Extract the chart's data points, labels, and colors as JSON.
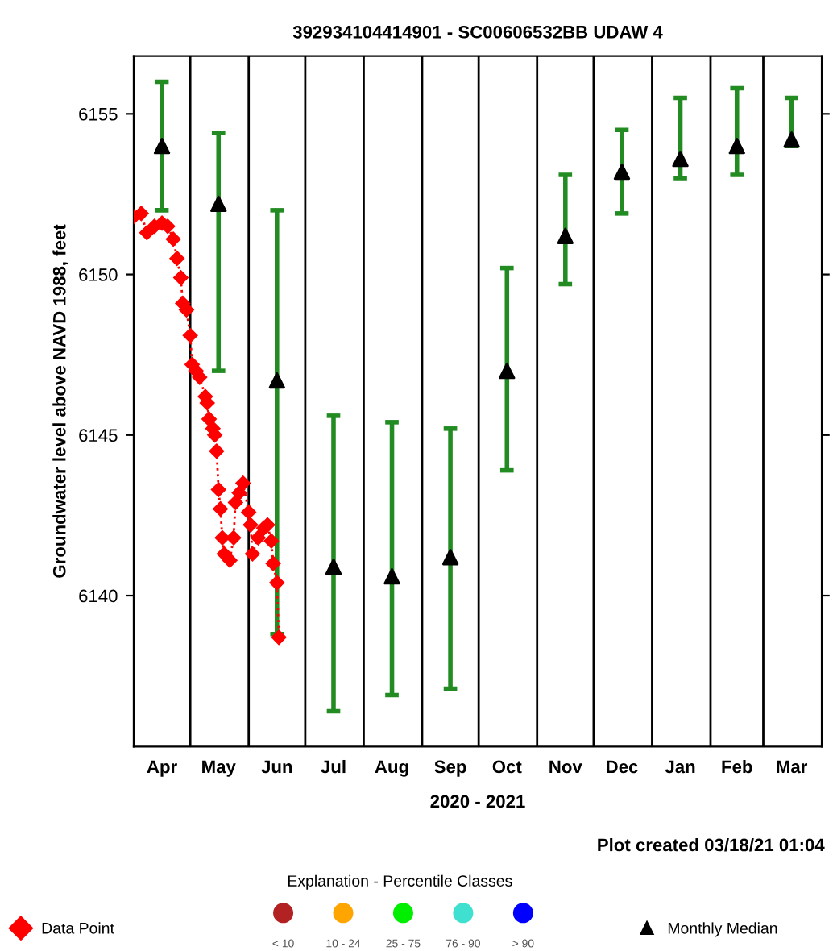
{
  "chart_data": {
    "type": "scatter",
    "title": "392934104414901 - SC00606532BB UDAW 4",
    "xlabel": "2020 - 2021",
    "ylabel": "Groundwater level above NAVD 1988, feet",
    "xlim": [
      "2020-04-01",
      "2021-04-01"
    ],
    "xticks": [
      {
        "value": "2020-04-16",
        "label": "Apr"
      },
      {
        "value": "2020-05-16",
        "label": "May"
      },
      {
        "value": "2020-06-16",
        "label": "Jun"
      },
      {
        "value": "2020-07-16",
        "label": "Jul"
      },
      {
        "value": "2020-08-16",
        "label": "Aug"
      },
      {
        "value": "2020-09-16",
        "label": "Sep"
      },
      {
        "value": "2020-10-16",
        "label": "Oct"
      },
      {
        "value": "2020-11-16",
        "label": "Nov"
      },
      {
        "value": "2020-12-16",
        "label": "Dec"
      },
      {
        "value": "2021-01-16",
        "label": "Jan"
      },
      {
        "value": "2021-02-15",
        "label": "Feb"
      },
      {
        "value": "2021-03-16",
        "label": "Mar"
      }
    ],
    "ylim": [
      6135.3,
      6156.8
    ],
    "yticks": [
      6140,
      6145,
      6150,
      6155
    ],
    "grid": false,
    "legend": "bottom",
    "ref_lines": [
      {
        "axis": "x",
        "value": "2020-05-01",
        "color": "#000000"
      },
      {
        "axis": "x",
        "value": "2020-06-01",
        "color": "#000000"
      },
      {
        "axis": "x",
        "value": "2020-07-01",
        "color": "#000000"
      },
      {
        "axis": "x",
        "value": "2020-08-01",
        "color": "#000000"
      },
      {
        "axis": "x",
        "value": "2020-09-01",
        "color": "#000000"
      },
      {
        "axis": "x",
        "value": "2020-10-01",
        "color": "#000000"
      },
      {
        "axis": "x",
        "value": "2020-11-01",
        "color": "#000000"
      },
      {
        "axis": "x",
        "value": "2020-12-01",
        "color": "#000000"
      },
      {
        "axis": "x",
        "value": "2021-01-01",
        "color": "#000000"
      },
      {
        "axis": "x",
        "value": "2021-02-01",
        "color": "#000000"
      },
      {
        "axis": "x",
        "value": "2021-03-01",
        "color": "#000000"
      }
    ],
    "annotations": [
      "Plot created 03/18/21 01:04",
      "Explanation - Percentile Classes",
      "< 10",
      "10 - 24",
      "25 - 75",
      "76 - 90",
      "> 90"
    ],
    "series": [
      {
        "name": "Data Point",
        "type": "line",
        "color": "#ff0000",
        "marker": "diamond",
        "line_style": "dotted",
        "x": [
          "2020-04-01",
          "2020-04-05",
          "2020-04-08",
          "2020-04-12",
          "2020-04-16",
          "2020-04-19",
          "2020-04-22",
          "2020-04-24",
          "2020-04-26",
          "2020-04-27",
          "2020-04-29",
          "2020-05-01",
          "2020-05-02",
          "2020-05-04",
          "2020-05-06",
          "2020-05-09",
          "2020-05-10",
          "2020-05-11",
          "2020-05-13",
          "2020-05-14",
          "2020-05-15",
          "2020-05-16",
          "2020-05-17",
          "2020-05-18",
          "2020-05-19",
          "2020-05-22",
          "2020-05-24",
          "2020-05-25",
          "2020-05-27",
          "2020-05-29",
          "2020-06-01",
          "2020-06-02",
          "2020-06-03",
          "2020-06-06",
          "2020-06-09",
          "2020-06-11",
          "2020-06-13",
          "2020-06-14",
          "2020-06-16",
          "2020-06-17"
        ],
        "values": [
          6151.8,
          6151.9,
          6151.3,
          6151.5,
          6151.6,
          6151.5,
          6151.1,
          6150.5,
          6149.9,
          6149.1,
          6148.9,
          6148.1,
          6147.2,
          6147.0,
          6146.8,
          6146.2,
          6146.0,
          6145.5,
          6145.2,
          6145.0,
          6144.5,
          6143.3,
          6142.7,
          6141.8,
          6141.3,
          6141.1,
          6141.8,
          6142.9,
          6143.2,
          6143.5,
          6142.6,
          6142.2,
          6141.3,
          6141.8,
          6142.1,
          6142.2,
          6141.7,
          6141.0,
          6140.4,
          6138.7
        ]
      },
      {
        "name": "Monthly Median",
        "color": "#000000",
        "marker": "triangle",
        "x": [
          "2020-04-16",
          "2020-05-16",
          "2020-06-16",
          "2020-07-16",
          "2020-08-16",
          "2020-09-16",
          "2020-10-16",
          "2020-11-16",
          "2020-12-16",
          "2021-01-16",
          "2021-02-15",
          "2021-03-16"
        ],
        "values": [
          6154.0,
          6152.2,
          6146.7,
          6140.9,
          6140.6,
          6141.2,
          6147.0,
          6151.2,
          6153.2,
          6153.6,
          6154.0,
          6154.2
        ],
        "errors": [
          [
            6152.0,
            6156.0
          ],
          [
            6147.0,
            6154.4
          ],
          [
            6138.8,
            6152.0
          ],
          [
            6136.4,
            6145.6
          ],
          [
            6136.9,
            6145.4
          ],
          [
            6137.1,
            6145.2
          ],
          [
            6143.9,
            6150.2
          ],
          [
            6149.7,
            6153.1
          ],
          [
            6151.9,
            6154.5
          ],
          [
            6153.0,
            6155.5
          ],
          [
            6153.1,
            6155.8
          ],
          [
            6154.0,
            6155.5
          ]
        ]
      }
    ]
  }
}
